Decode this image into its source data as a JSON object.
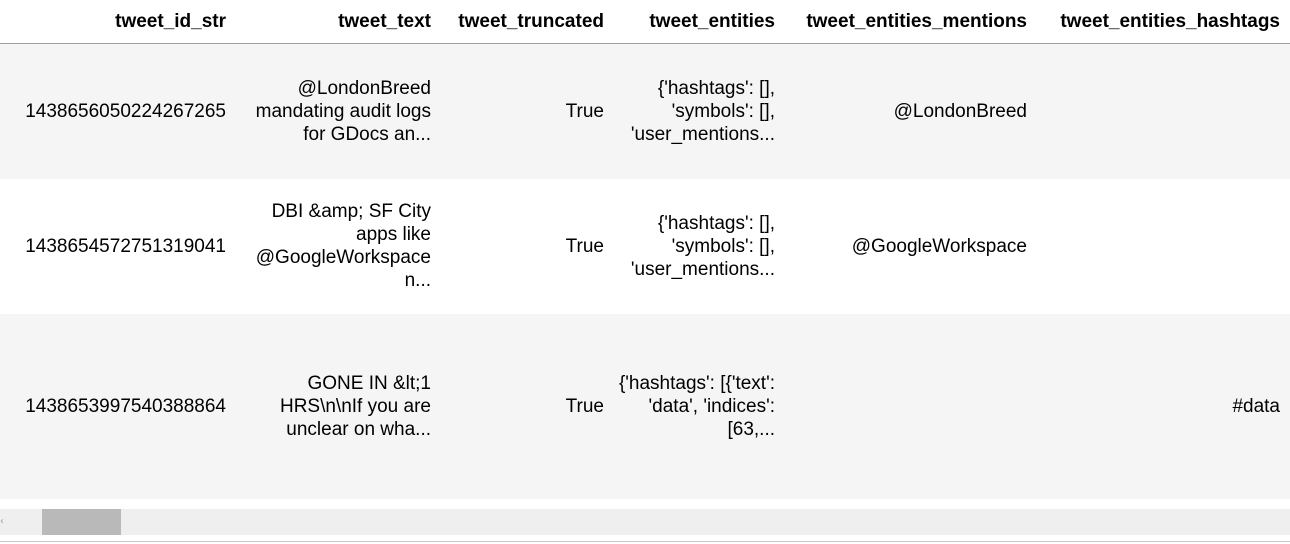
{
  "dataframe": {
    "columns": [
      "tweet_id_str",
      "tweet_text",
      "tweet_truncated",
      "tweet_entities",
      "tweet_entities_mentions",
      "tweet_entities_hashtags"
    ],
    "rows": [
      {
        "tweet_id_str": "1438656050224267265",
        "tweet_text": "@LondonBreed mandating audit logs for GDocs an...",
        "tweet_truncated": "True",
        "tweet_entities": "{'hashtags': [], 'symbols': [], 'user_mentions...",
        "tweet_entities_mentions": "@LondonBreed",
        "tweet_entities_hashtags": ""
      },
      {
        "tweet_id_str": "1438654572751319041",
        "tweet_text": "DBI &amp; SF City apps like @GoogleWorkspace n...",
        "tweet_truncated": "True",
        "tweet_entities": "{'hashtags': [], 'symbols': [], 'user_mentions...",
        "tweet_entities_mentions": "@GoogleWorkspace",
        "tweet_entities_hashtags": ""
      },
      {
        "tweet_id_str": "1438653997540388864",
        "tweet_text": "GONE IN &lt;1 HRS\\n\\nIf you are unclear on wha...",
        "tweet_truncated": "True",
        "tweet_entities": "{'hashtags': [{'text': 'data', 'indices': [63,...",
        "tweet_entities_mentions": "",
        "tweet_entities_hashtags": "#data"
      }
    ]
  },
  "scrollbar": {
    "orientation": "horizontal",
    "left_arrow_icon": "chevron-left-icon",
    "left_arrow_glyph": "‹",
    "position_fraction": 0.03
  },
  "colors": {
    "stripe": "#f5f5f5",
    "header_rule": "#9e9e9e",
    "scroll_track": "#efefef",
    "scroll_thumb": "#b9b9b9"
  }
}
